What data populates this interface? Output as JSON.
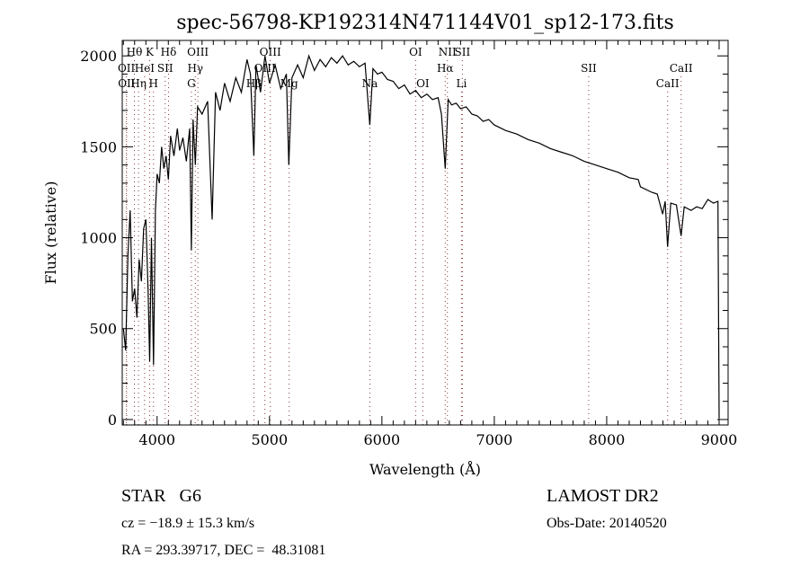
{
  "chart_data": {
    "type": "line",
    "title": "spec-56798-KP192314N471144V01_sp12-173.fits",
    "xlabel": "Wavelength (Å)",
    "ylabel": "Flux (relative)",
    "xlim": [
      3690,
      9080
    ],
    "ylim": [
      -30,
      2085
    ],
    "xticks": [
      4000,
      5000,
      6000,
      7000,
      8000,
      9000
    ],
    "yticks": [
      0,
      500,
      1000,
      1500,
      2000
    ],
    "grid": false,
    "series": [
      {
        "name": "spectrum",
        "points": [
          [
            3700,
            500
          ],
          [
            3720,
            380
          ],
          [
            3740,
            900
          ],
          [
            3760,
            1150
          ],
          [
            3780,
            650
          ],
          [
            3800,
            720
          ],
          [
            3820,
            560
          ],
          [
            3840,
            880
          ],
          [
            3860,
            760
          ],
          [
            3880,
            1050
          ],
          [
            3900,
            1100
          ],
          [
            3920,
            700
          ],
          [
            3934,
            320
          ],
          [
            3950,
            1000
          ],
          [
            3968,
            300
          ],
          [
            3985,
            1150
          ],
          [
            4000,
            1350
          ],
          [
            4020,
            1300
          ],
          [
            4040,
            1500
          ],
          [
            4060,
            1380
          ],
          [
            4080,
            1450
          ],
          [
            4100,
            1320
          ],
          [
            4120,
            1560
          ],
          [
            4150,
            1450
          ],
          [
            4180,
            1600
          ],
          [
            4200,
            1480
          ],
          [
            4230,
            1550
          ],
          [
            4260,
            1420
          ],
          [
            4290,
            1600
          ],
          [
            4305,
            930
          ],
          [
            4320,
            1650
          ],
          [
            4340,
            1400
          ],
          [
            4360,
            1720
          ],
          [
            4400,
            1680
          ],
          [
            4450,
            1750
          ],
          [
            4490,
            1100
          ],
          [
            4520,
            1800
          ],
          [
            4560,
            1700
          ],
          [
            4600,
            1850
          ],
          [
            4650,
            1750
          ],
          [
            4700,
            1880
          ],
          [
            4750,
            1800
          ],
          [
            4800,
            1980
          ],
          [
            4830,
            1900
          ],
          [
            4861,
            1450
          ],
          [
            4880,
            1950
          ],
          [
            4920,
            1800
          ],
          [
            4960,
            2000
          ],
          [
            5000,
            1850
          ],
          [
            5050,
            1950
          ],
          [
            5100,
            1820
          ],
          [
            5150,
            1900
          ],
          [
            5172,
            1400
          ],
          [
            5200,
            1880
          ],
          [
            5250,
            1950
          ],
          [
            5300,
            1880
          ],
          [
            5350,
            2000
          ],
          [
            5400,
            1920
          ],
          [
            5450,
            1980
          ],
          [
            5500,
            1940
          ],
          [
            5550,
            1990
          ],
          [
            5600,
            1960
          ],
          [
            5650,
            2000
          ],
          [
            5700,
            1950
          ],
          [
            5750,
            1970
          ],
          [
            5800,
            1940
          ],
          [
            5850,
            1960
          ],
          [
            5892,
            1620
          ],
          [
            5920,
            1930
          ],
          [
            5960,
            1900
          ],
          [
            6000,
            1910
          ],
          [
            6050,
            1870
          ],
          [
            6100,
            1860
          ],
          [
            6150,
            1820
          ],
          [
            6200,
            1840
          ],
          [
            6250,
            1790
          ],
          [
            6300,
            1810
          ],
          [
            6350,
            1770
          ],
          [
            6400,
            1790
          ],
          [
            6450,
            1760
          ],
          [
            6500,
            1770
          ],
          [
            6530,
            1680
          ],
          [
            6563,
            1380
          ],
          [
            6590,
            1760
          ],
          [
            6620,
            1730
          ],
          [
            6660,
            1740
          ],
          [
            6700,
            1710
          ],
          [
            6750,
            1720
          ],
          [
            6800,
            1680
          ],
          [
            6850,
            1670
          ],
          [
            6900,
            1640
          ],
          [
            6950,
            1650
          ],
          [
            7000,
            1620
          ],
          [
            7100,
            1590
          ],
          [
            7200,
            1570
          ],
          [
            7300,
            1540
          ],
          [
            7400,
            1520
          ],
          [
            7500,
            1490
          ],
          [
            7600,
            1470
          ],
          [
            7700,
            1450
          ],
          [
            7800,
            1420
          ],
          [
            7900,
            1400
          ],
          [
            8000,
            1380
          ],
          [
            8100,
            1360
          ],
          [
            8200,
            1330
          ],
          [
            8280,
            1320
          ],
          [
            8300,
            1280
          ],
          [
            8400,
            1250
          ],
          [
            8450,
            1240
          ],
          [
            8498,
            1130
          ],
          [
            8520,
            1200
          ],
          [
            8542,
            950
          ],
          [
            8570,
            1190
          ],
          [
            8620,
            1180
          ],
          [
            8662,
            1010
          ],
          [
            8690,
            1170
          ],
          [
            8750,
            1150
          ],
          [
            8800,
            1170
          ],
          [
            8850,
            1160
          ],
          [
            8900,
            1210
          ],
          [
            8950,
            1190
          ],
          [
            8990,
            1200
          ],
          [
            9000,
            10
          ]
        ]
      }
    ],
    "line_marks": [
      {
        "label": "Hθ",
        "wl": 3798,
        "row": 0
      },
      {
        "label": "K",
        "wl": 3934,
        "row": 0
      },
      {
        "label": "Hδ",
        "wl": 4102,
        "row": 0
      },
      {
        "label": "OIII",
        "wl": 4363,
        "row": 0
      },
      {
        "label": "OIII",
        "wl": 5007,
        "row": 0
      },
      {
        "label": "OI",
        "wl": 6300,
        "row": 0
      },
      {
        "label": "NII",
        "wl": 6583,
        "row": 0
      },
      {
        "label": "SII",
        "wl": 6716,
        "row": 0
      },
      {
        "label": "OII",
        "wl": 3727,
        "row": 1
      },
      {
        "label": "HeI",
        "wl": 3889,
        "row": 1
      },
      {
        "label": "SII",
        "wl": 4072,
        "row": 1
      },
      {
        "label": "Hγ",
        "wl": 4340,
        "row": 1
      },
      {
        "label": "OIII",
        "wl": 4959,
        "row": 1
      },
      {
        "label": "Hα",
        "wl": 6563,
        "row": 1
      },
      {
        "label": "SII",
        "wl": 7840,
        "row": 1
      },
      {
        "label": "CaII",
        "wl": 8662,
        "row": 1
      },
      {
        "label": "OII",
        "wl": 3729,
        "row": 2
      },
      {
        "label": "Hη",
        "wl": 3835,
        "row": 2
      },
      {
        "label": "H",
        "wl": 3968,
        "row": 2
      },
      {
        "label": "G",
        "wl": 4305,
        "row": 2
      },
      {
        "label": "Hβ",
        "wl": 4861,
        "row": 2
      },
      {
        "label": "Mg",
        "wl": 5175,
        "row": 2
      },
      {
        "label": "Na",
        "wl": 5893,
        "row": 2
      },
      {
        "label": "OI",
        "wl": 6364,
        "row": 2
      },
      {
        "label": "Li",
        "wl": 6708,
        "row": 2
      },
      {
        "label": "CaII",
        "wl": 8542,
        "row": 2
      }
    ]
  },
  "info": {
    "object_class": "STAR",
    "subclass": "G6",
    "cz": "cz = −18.9 ± 15.3 km/s",
    "coords": "RA = 293.39717, DEC =  48.31081",
    "survey": "LAMOST DR2",
    "obs_date": "Obs-Date: 20140520"
  }
}
